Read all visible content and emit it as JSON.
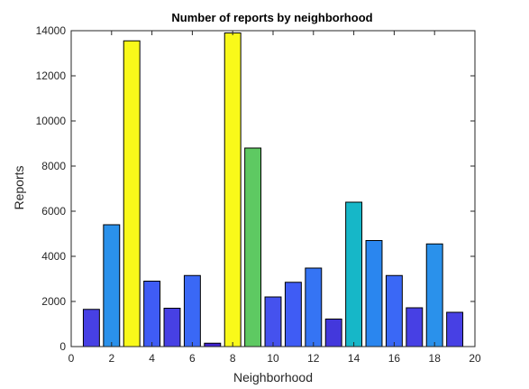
{
  "chart_data": {
    "type": "bar",
    "title": "Number of reports by neighborhood",
    "xlabel": "Neighborhood",
    "ylabel": "Reports",
    "xlim": [
      0,
      20
    ],
    "ylim": [
      0,
      14000
    ],
    "xticks": [
      0,
      2,
      4,
      6,
      8,
      10,
      12,
      14,
      16,
      18,
      20
    ],
    "yticks": [
      0,
      2000,
      4000,
      6000,
      8000,
      10000,
      12000,
      14000
    ],
    "bar_width": 0.8,
    "grid": false,
    "bars": [
      {
        "x": 1,
        "value": 1650,
        "color": "#4740e4"
      },
      {
        "x": 2,
        "value": 5400,
        "color": "#2a91eb"
      },
      {
        "x": 3,
        "value": 13550,
        "color": "#f9f91a"
      },
      {
        "x": 4,
        "value": 2900,
        "color": "#3f5cf5"
      },
      {
        "x": 5,
        "value": 1700,
        "color": "#4740e4"
      },
      {
        "x": 6,
        "value": 3150,
        "color": "#3a68f6"
      },
      {
        "x": 7,
        "value": 150,
        "color": "#3f22d0"
      },
      {
        "x": 8,
        "value": 13900,
        "color": "#f9f91a"
      },
      {
        "x": 9,
        "value": 8800,
        "color": "#5ec962"
      },
      {
        "x": 10,
        "value": 2200,
        "color": "#4552ee"
      },
      {
        "x": 11,
        "value": 2850,
        "color": "#3f5cf5"
      },
      {
        "x": 12,
        "value": 3480,
        "color": "#3574f4"
      },
      {
        "x": 13,
        "value": 1220,
        "color": "#4338dc"
      },
      {
        "x": 14,
        "value": 6400,
        "color": "#16b7c8"
      },
      {
        "x": 15,
        "value": 4700,
        "color": "#2a86ef"
      },
      {
        "x": 16,
        "value": 3150,
        "color": "#3a68f6"
      },
      {
        "x": 17,
        "value": 1720,
        "color": "#4740e4"
      },
      {
        "x": 18,
        "value": 4550,
        "color": "#2a91eb"
      },
      {
        "x": 19,
        "value": 1520,
        "color": "#4740e4"
      }
    ]
  }
}
